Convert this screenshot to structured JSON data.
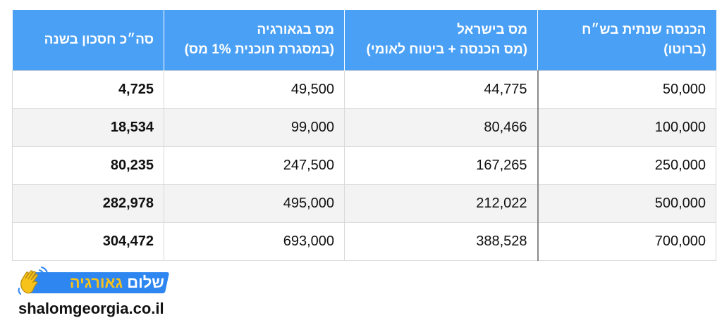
{
  "table": {
    "headers": [
      {
        "line1": "הכנסה שנתית בש״ח",
        "line2": "(ברוטו)"
      },
      {
        "line1": "מס בישראל",
        "line2": "(מס הכנסה + ביטוח לאומי)"
      },
      {
        "line1": "מס בגאורגיה",
        "line2": "(במסגרת תוכנית 1% מס)"
      },
      {
        "line1": "סה״כ חסכון בשנה",
        "line2": ""
      }
    ],
    "rows": [
      {
        "income": "50,000",
        "israel_tax": "44,775",
        "georgia_tax": "49,500",
        "savings": "4,725"
      },
      {
        "income": "100,000",
        "israel_tax": "80,466",
        "georgia_tax": "99,000",
        "savings": "18,534"
      },
      {
        "income": "250,000",
        "israel_tax": "167,265",
        "georgia_tax": "247,500",
        "savings": "80,235"
      },
      {
        "income": "500,000",
        "israel_tax": "212,022",
        "georgia_tax": "495,000",
        "savings": "282,978"
      },
      {
        "income": "700,000",
        "israel_tax": "388,528",
        "georgia_tax": "693,000",
        "savings": "304,472"
      }
    ]
  },
  "brand": {
    "name_part1": "שלום",
    "name_part2": "גאורגיה",
    "website": "shalomgeorgia.co.il",
    "icon": "waving-hand-icon"
  },
  "colors": {
    "header_bg": "#4aa0f5",
    "brand_blue": "#2e86f0",
    "brand_yellow": "#f7c21a"
  }
}
